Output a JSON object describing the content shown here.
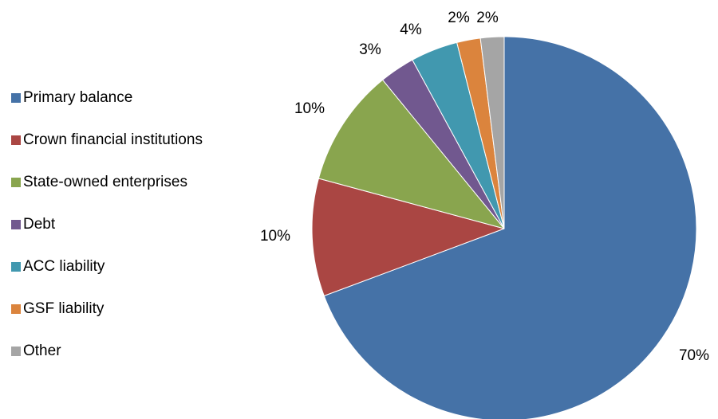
{
  "chart_data": {
    "type": "pie",
    "title": "",
    "legend_position": "left",
    "start_angle_deg": 0,
    "direction": "clockwise",
    "slices": [
      {
        "name": "Primary balance",
        "value": 70,
        "label": "70%",
        "color": "#4572A7"
      },
      {
        "name": "Crown financial institutions",
        "value": 10,
        "label": "10%",
        "color": "#AA4643"
      },
      {
        "name": "State-owned enterprises",
        "value": 10,
        "label": "10%",
        "color": "#89A54E"
      },
      {
        "name": "Debt",
        "value": 3,
        "label": "3%",
        "color": "#71588F"
      },
      {
        "name": "ACC liability",
        "value": 4,
        "label": "4%",
        "color": "#4198AF"
      },
      {
        "name": "GSF liability",
        "value": 2,
        "label": "2%",
        "color": "#DB843D"
      },
      {
        "name": "Other",
        "value": 2,
        "label": "2%",
        "color": "#A5A5A5"
      }
    ]
  }
}
